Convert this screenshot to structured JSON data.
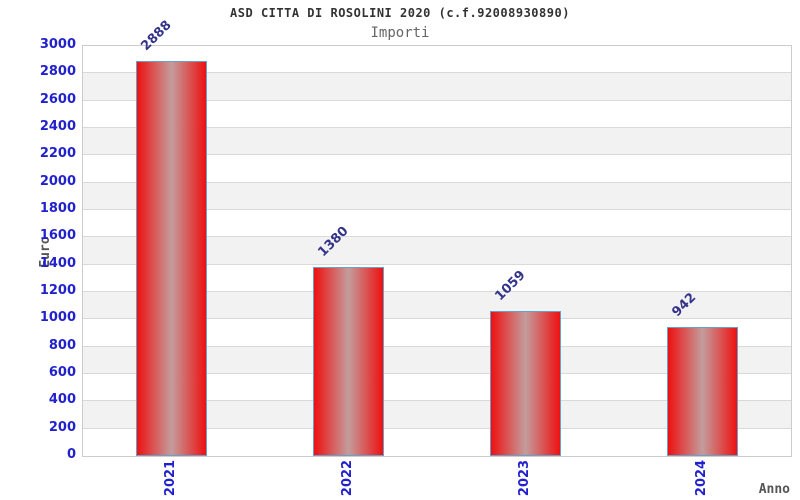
{
  "header": {
    "title": "ASD CITTA DI ROSOLINI 2020 (c.f.92008930890)",
    "subtitle": "Importi"
  },
  "chart_data": {
    "type": "bar",
    "title": "ASD CITTA DI ROSOLINI 2020 (c.f.92008930890)",
    "subtitle": "Importi",
    "categories": [
      "2021",
      "2022",
      "2023",
      "2024"
    ],
    "values": [
      2888,
      1380,
      1059,
      942
    ],
    "bar_value_labels": [
      "2888",
      "1380",
      "1059",
      "942"
    ],
    "xlabel": "Anno",
    "ylabel": "Euro",
    "ylim": [
      0,
      3000
    ],
    "ytick_step": 200,
    "yticks": [
      0,
      200,
      400,
      600,
      800,
      1000,
      1200,
      1400,
      1600,
      1800,
      2000,
      2200,
      2400,
      2600,
      2800,
      3000
    ],
    "grid": true,
    "legend_position": "none",
    "colors": {
      "axis_tick_label": "#2222cc",
      "bar_value_label": "#333388",
      "bar_red": "#ee1111",
      "bar_center_sheen": "#c49c9c",
      "bar_border": "#66a0cc",
      "band_light": "#ffffff",
      "band_gray": "#f2f2f2",
      "gridline": "#d9d9d9",
      "frame_border": "#cccccc",
      "title_text": "#333333",
      "subtitle_text": "#666666",
      "axis_title_text": "#555555"
    }
  }
}
